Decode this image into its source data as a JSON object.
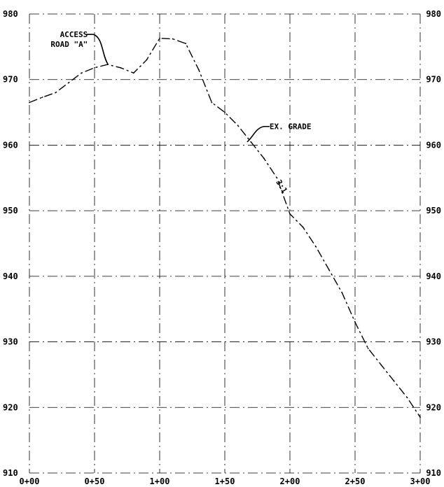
{
  "chart_data": {
    "type": "line",
    "title": "",
    "xlabel": "",
    "ylabel": "",
    "x_tick_labels": [
      "0+00",
      "0+50",
      "1+00",
      "1+50",
      "2+00",
      "2+50",
      "3+00"
    ],
    "x_tick_values": [
      0,
      50,
      100,
      150,
      200,
      250,
      300
    ],
    "y_tick_labels_left": [
      "910",
      "920",
      "930",
      "940",
      "950",
      "960",
      "970",
      "980"
    ],
    "y_tick_labels_right": [
      "910",
      "920",
      "930",
      "940",
      "950",
      "960",
      "970",
      "980"
    ],
    "y_tick_values": [
      910,
      920,
      930,
      940,
      950,
      960,
      970,
      980
    ],
    "xlim": [
      0,
      300
    ],
    "ylim": [
      910,
      980
    ],
    "grid": true,
    "series": [
      {
        "x": [
          0,
          10,
          20,
          30,
          40,
          50,
          60,
          70,
          80,
          90,
          100,
          110,
          120,
          130,
          140,
          150,
          160,
          170,
          180,
          190,
          200,
          210,
          220,
          230,
          240,
          250,
          260,
          270,
          280,
          290,
          300
        ],
        "y": [
          966.5,
          967.3,
          968,
          969.5,
          971,
          971.8,
          972.3,
          971.8,
          971,
          973,
          976.3,
          976.2,
          975.5,
          971.5,
          966.5,
          965,
          963,
          960.5,
          958,
          955,
          949.5,
          947.5,
          944.5,
          941,
          937.5,
          933,
          929,
          926.5,
          924,
          921.5,
          918.5
        ]
      }
    ],
    "annotations": [
      {
        "lines": [
          "ACCESS",
          "ROAD \"A\""
        ],
        "x": 62,
        "y": 972.3
      },
      {
        "lines": [
          "EX. GRADE"
        ],
        "x": 165,
        "y": 960.5
      },
      {
        "lines": [
          "3:1"
        ],
        "x": 192,
        "y": 953.5
      }
    ]
  }
}
